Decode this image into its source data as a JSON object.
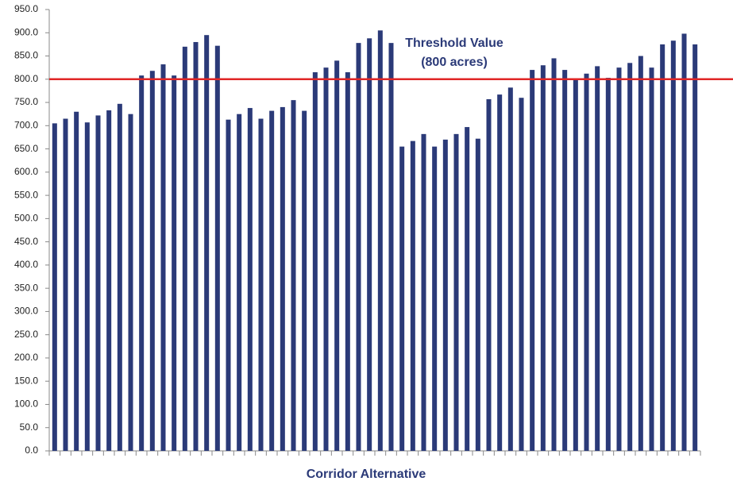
{
  "chart_data": {
    "type": "bar",
    "x_label": "Corridor Alternative",
    "categories": [
      null,
      null,
      null,
      null,
      null,
      null,
      null,
      null,
      null,
      null,
      null,
      null,
      null,
      null,
      null,
      null,
      null,
      null,
      null,
      null,
      null,
      null,
      null,
      null,
      null,
      null,
      null,
      null,
      null,
      null,
      null,
      null,
      null,
      null,
      null,
      null,
      null,
      null,
      null,
      null,
      null,
      null,
      null,
      null,
      null,
      null,
      null,
      null,
      null,
      null,
      null,
      null,
      null,
      null,
      null,
      null,
      null,
      null,
      null,
      null
    ],
    "values": [
      705,
      715,
      730,
      707,
      722,
      733,
      747,
      725,
      808,
      818,
      832,
      808,
      870,
      880,
      895,
      872,
      713,
      725,
      738,
      715,
      732,
      740,
      755,
      732,
      815,
      825,
      840,
      815,
      878,
      888,
      905,
      878,
      655,
      667,
      682,
      655,
      670,
      682,
      697,
      672,
      757,
      767,
      782,
      760,
      820,
      830,
      845,
      820,
      800,
      812,
      828,
      803,
      825,
      835,
      850,
      825,
      875,
      883,
      898,
      875
    ],
    "color": "#2b3a78",
    "ylim": [
      0,
      950
    ],
    "yticks": [
      {
        "value": 0,
        "label": "0.0"
      },
      {
        "value": 50,
        "label": "50.0"
      },
      {
        "value": 100,
        "label": "100.0"
      },
      {
        "value": 150,
        "label": "150.0"
      },
      {
        "value": 200,
        "label": "200.0"
      },
      {
        "value": 250,
        "label": "250.0"
      },
      {
        "value": 300,
        "label": "300.0"
      },
      {
        "value": 350,
        "label": "350.0"
      },
      {
        "value": 400,
        "label": "400.0"
      },
      {
        "value": 450,
        "label": "450.0"
      },
      {
        "value": 500,
        "label": "500.0"
      },
      {
        "value": 550,
        "label": "550.0"
      },
      {
        "value": 600,
        "label": "600.0"
      },
      {
        "value": 650,
        "label": "650.0"
      },
      {
        "value": 700,
        "label": "700.0"
      },
      {
        "value": 750,
        "label": "750.0"
      },
      {
        "value": 800,
        "label": "800.0"
      },
      {
        "value": 850,
        "label": "850.0"
      },
      {
        "value": 900,
        "label": "900.0"
      },
      {
        "value": 950,
        "label": "950.0"
      }
    ],
    "grid": false,
    "threshold": {
      "value": 800,
      "label": "Threshold Value",
      "sublabel": "(800 acres)",
      "color": "#e02626"
    }
  }
}
